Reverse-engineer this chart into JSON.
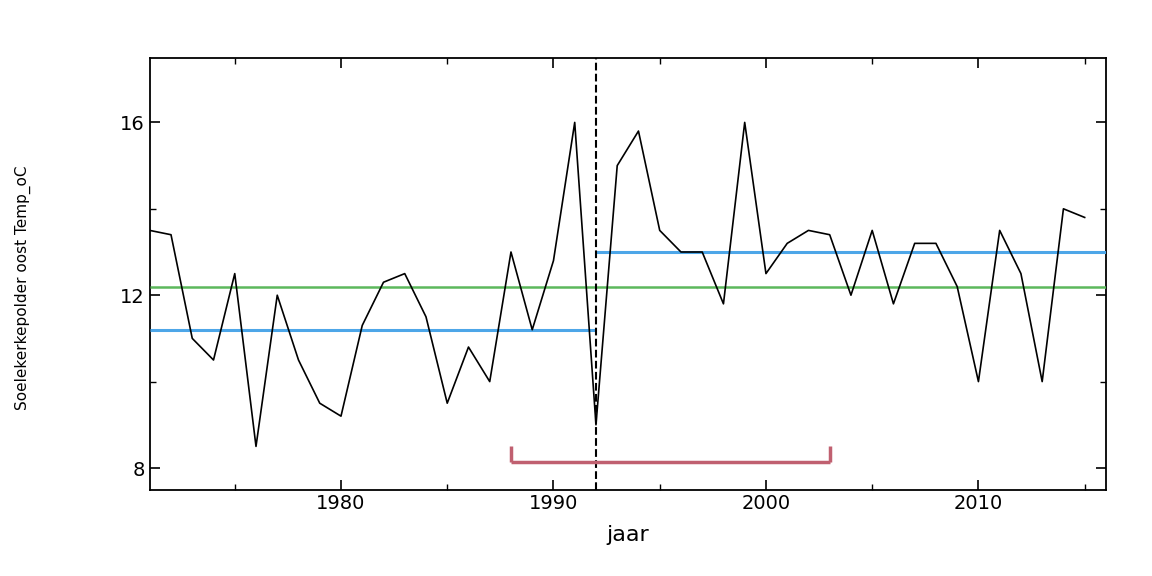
{
  "years": [
    1971,
    1972,
    1973,
    1974,
    1975,
    1976,
    1977,
    1978,
    1979,
    1980,
    1981,
    1982,
    1983,
    1984,
    1985,
    1986,
    1987,
    1988,
    1989,
    1990,
    1991,
    1992,
    1993,
    1994,
    1995,
    1996,
    1997,
    1998,
    1999,
    2000,
    2001,
    2002,
    2003,
    2004,
    2005,
    2006,
    2007,
    2008,
    2009,
    2010,
    2011,
    2012,
    2013,
    2014,
    2015
  ],
  "temps": [
    13.5,
    13.4,
    11.0,
    10.5,
    12.5,
    8.5,
    12.0,
    10.5,
    9.5,
    9.2,
    11.3,
    12.3,
    12.5,
    11.5,
    9.5,
    10.8,
    10.0,
    13.0,
    11.2,
    12.8,
    16.0,
    9.0,
    15.0,
    15.8,
    13.5,
    13.0,
    13.0,
    11.8,
    16.0,
    12.5,
    13.2,
    13.5,
    13.4,
    12.0,
    13.5,
    11.8,
    13.2,
    13.2,
    12.2,
    10.0,
    13.5,
    12.5,
    10.0,
    14.0,
    13.8
  ],
  "breakpoint_year": 1992,
  "blue_level_before": 11.2,
  "blue_level_after": 13.0,
  "green_level": 12.2,
  "red_band_start": 1988,
  "red_band_end": 2003,
  "xlim_left": 1971,
  "xlim_right": 2016,
  "ylim_bottom": 7.5,
  "ylim_top": 17.5,
  "yticks": [
    8,
    12,
    16
  ],
  "xticks_major": [
    1980,
    1990,
    2000,
    2010
  ],
  "xticks_minor": [
    1975,
    1985,
    1995,
    2005,
    2015
  ],
  "xlabel": "jaar",
  "ylabel": "Soelekerkepolder oost Temp_oC",
  "background_color": "#ffffff",
  "line_color": "#000000",
  "blue_color": "#4da6e8",
  "green_color": "#5cb85c",
  "red_color": "#c06070",
  "dashed_line_color": "#000000",
  "tick_fontsize": 14,
  "label_fontsize": 16
}
